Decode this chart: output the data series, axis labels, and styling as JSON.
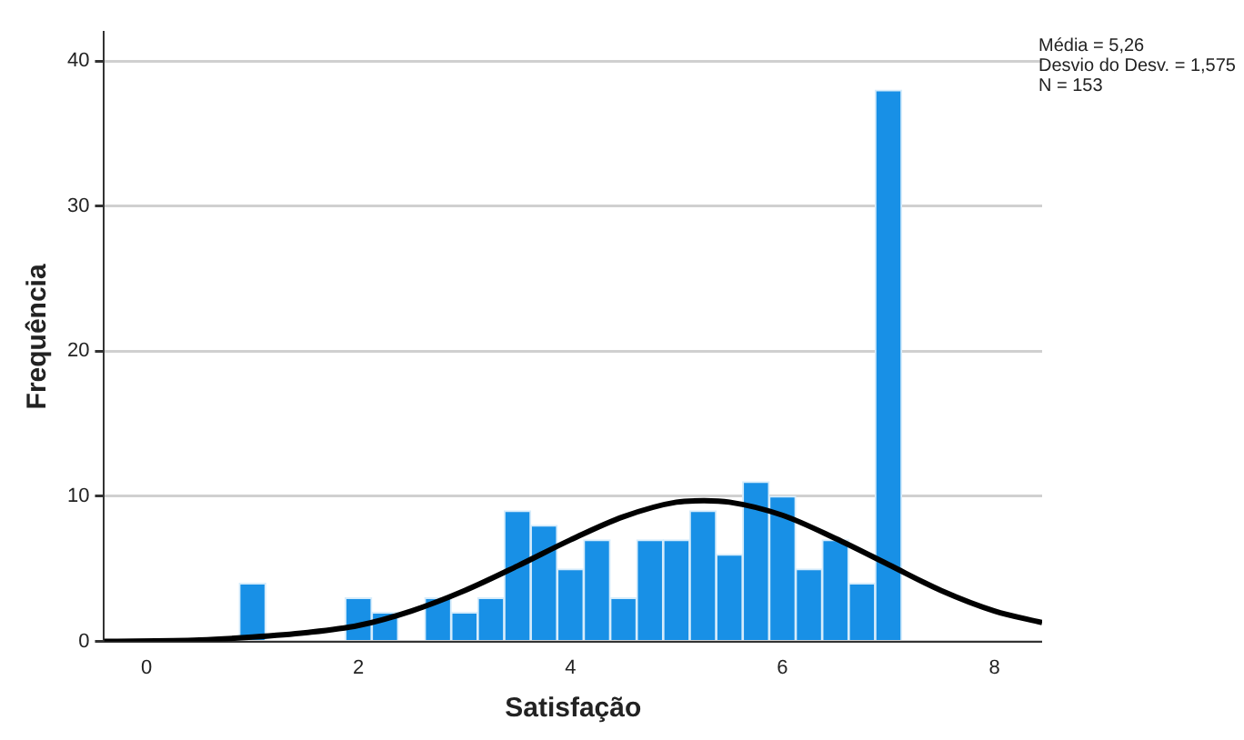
{
  "chart_data": {
    "type": "histogram",
    "xlabel": "Satisfação",
    "ylabel": "Frequência",
    "bins": [
      0.875,
      1.125,
      1.375,
      1.625,
      1.875,
      2.125,
      2.375,
      2.625,
      2.875,
      3.125,
      3.375,
      3.625,
      3.875,
      4.125,
      4.375,
      4.625,
      4.875,
      5.125,
      5.375,
      5.625,
      5.875,
      6.125,
      6.375,
      6.625,
      6.875,
      7.125
    ],
    "values": [
      4,
      0,
      0,
      0,
      3,
      2,
      0,
      3,
      2,
      3,
      9,
      8,
      5,
      7,
      3,
      7,
      7,
      9,
      6,
      11,
      10,
      5,
      7,
      4,
      38
    ],
    "color": "#1890e6",
    "series": [
      {
        "type": "line",
        "color": "#000000",
        "x": [
          -0.4,
          0.5,
          1,
          1.5,
          2,
          2.5,
          3,
          3.5,
          4,
          4.5,
          5,
          5.26,
          5.5,
          6,
          6.5,
          7,
          7.5,
          8,
          8.45
        ],
        "values": [
          0.0,
          0.1,
          0.3,
          0.6,
          1.1,
          2.1,
          3.5,
          5.2,
          7.0,
          8.6,
          9.6,
          9.7,
          9.6,
          8.7,
          7.1,
          5.3,
          3.5,
          2.1,
          1.3
        ]
      }
    ],
    "xlim": [
      -0.4,
      8.45
    ],
    "xticks": [
      0,
      2,
      4,
      6,
      8
    ],
    "ylim": [
      0,
      42
    ],
    "yticks": [
      0,
      10,
      20,
      30,
      40
    ],
    "grid": "y",
    "legend": false,
    "marker": "none",
    "annotations": [
      "Média = 5,26",
      "Desvio do Desv. = 1,575",
      "N = 153"
    ]
  }
}
